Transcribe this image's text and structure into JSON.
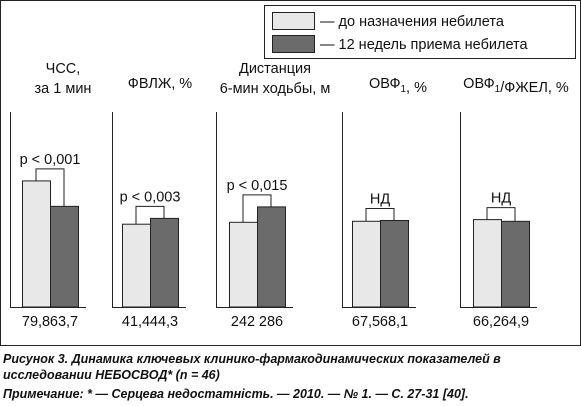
{
  "chart_data": {
    "type": "bar",
    "categories": [
      [
        "ЧСС,",
        "за 1 мин"
      ],
      [
        "ФВЛЖ, %"
      ],
      [
        "Дистанция",
        "6-мин ходьбы, м"
      ],
      [
        "ОВФ₁, %"
      ],
      [
        "ОВФ₁/ФЖЕЛ, %"
      ]
    ],
    "series": [
      {
        "name": "— до назначения небилета",
        "color": "#e8e8e8",
        "values": [
          79.8,
          41.4,
          242,
          67.5,
          66.2
        ],
        "labels": [
          "79,8",
          "41,4",
          "242",
          "67,5",
          "66,2"
        ]
      },
      {
        "name": "— 12 недель приема небилета",
        "color": "#6b6b6b",
        "values": [
          63.7,
          44.3,
          286,
          68.1,
          64.9
        ],
        "labels": [
          "63,7",
          "44,3",
          "286",
          "68,1",
          "64,9"
        ]
      }
    ],
    "significance": [
      "p < 0,001",
      "p < 0,003",
      "p < 0,015",
      "НД",
      "НД"
    ],
    "legend_position": "top-right",
    "grid": false
  },
  "caption": {
    "line1": "Рисунок 3. Динамика ключевых клинико-фармакодинамических показателей в",
    "line2": "исследовании НЕБОСВОД* (n = 46)",
    "line3": "Примечание: * — Серцева недостатність. — 2010. — № 1. — С. 27-31 [40]."
  }
}
